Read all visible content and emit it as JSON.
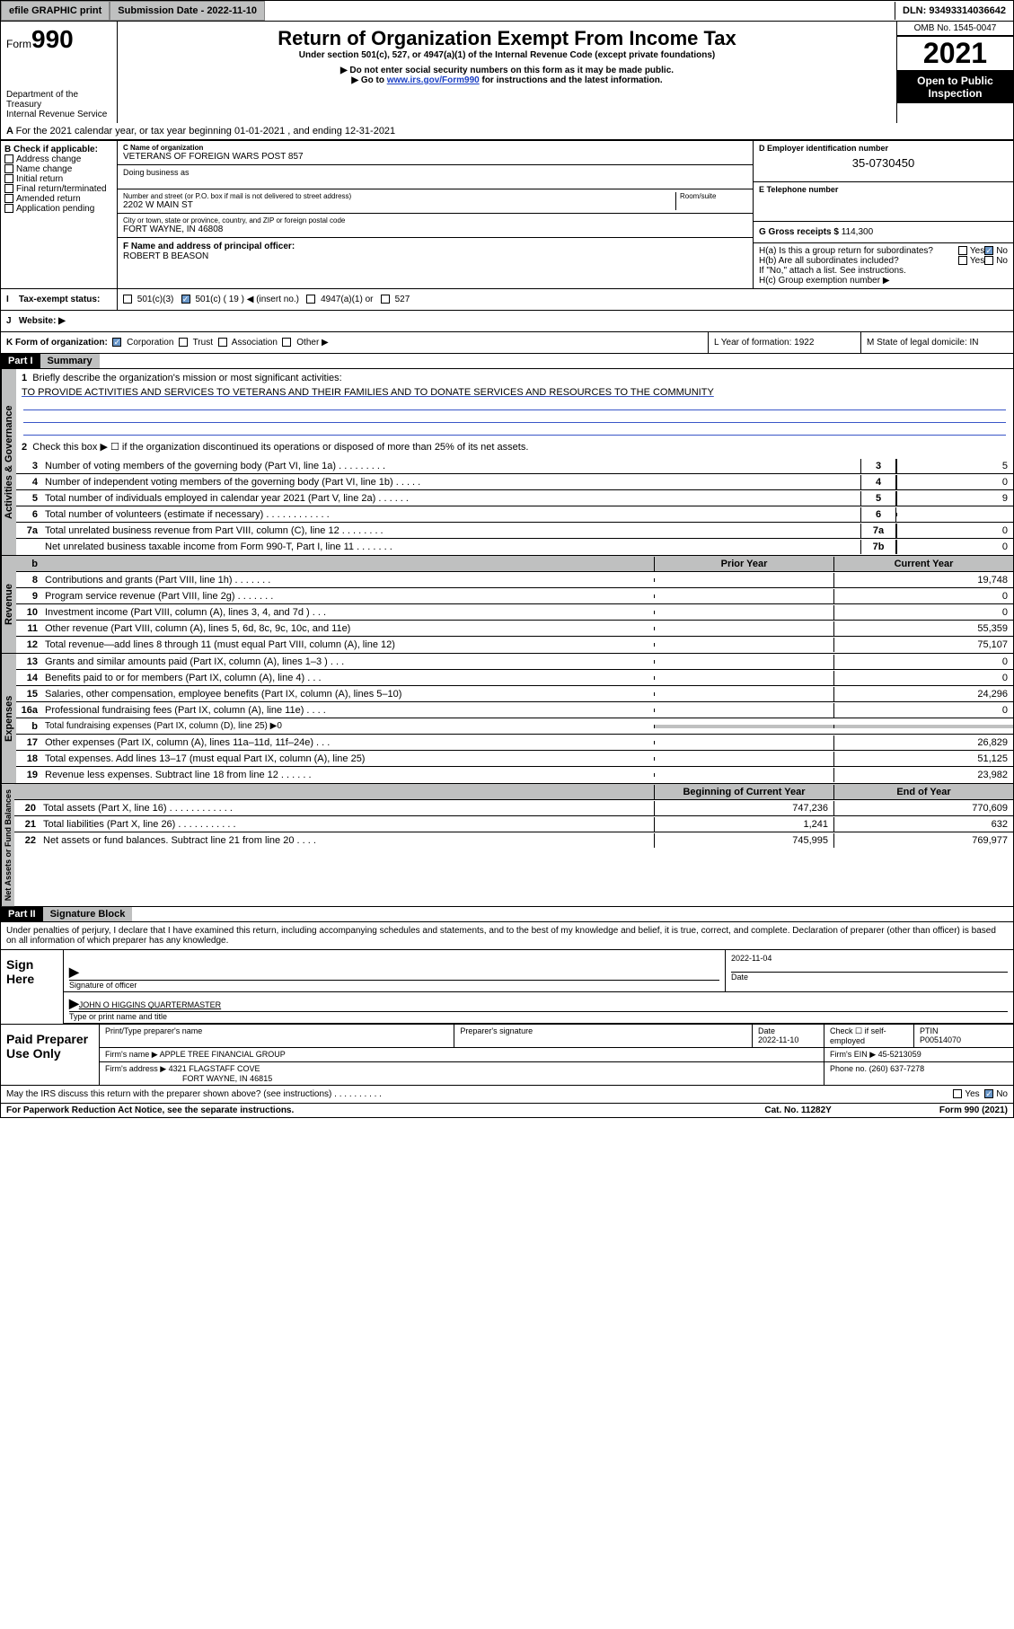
{
  "topbar": {
    "efile": "efile GRAPHIC print",
    "sub_label": "Submission Date - 2022-11-10",
    "dln": "DLN: 93493314036642"
  },
  "header": {
    "form_prefix": "Form",
    "form_no": "990",
    "dept": "Department of the Treasury",
    "irs": "Internal Revenue Service",
    "title": "Return of Organization Exempt From Income Tax",
    "sub1": "Under section 501(c), 527, or 4947(a)(1) of the Internal Revenue Code (except private foundations)",
    "sub2": "▶ Do not enter social security numbers on this form as it may be made public.",
    "sub3_pre": "▶ Go to ",
    "sub3_link": "www.irs.gov/Form990",
    "sub3_post": " for instructions and the latest information.",
    "omb": "OMB No. 1545-0047",
    "year": "2021",
    "open": "Open to Public Inspection"
  },
  "lineA": "For the 2021 calendar year, or tax year beginning 01-01-2021    , and ending 12-31-2021",
  "boxB": {
    "label": "B Check if applicable:",
    "items": [
      "Address change",
      "Name change",
      "Initial return",
      "Final return/terminated",
      "Amended return",
      "Application pending"
    ]
  },
  "boxC": {
    "label": "C Name of organization",
    "name": "VETERANS OF FOREIGN WARS POST 857",
    "dba_label": "Doing business as",
    "addr_label": "Number and street (or P.O. box if mail is not delivered to street address)",
    "room_label": "Room/suite",
    "addr": "2202 W MAIN ST",
    "city_label": "City or town, state or province, country, and ZIP or foreign postal code",
    "city": "FORT WAYNE, IN  46808"
  },
  "boxD": {
    "label": "D Employer identification number",
    "val": "35-0730450"
  },
  "boxE": {
    "label": "E Telephone number"
  },
  "boxF": {
    "label": "F  Name and address of principal officer:",
    "name": "ROBERT B BEASON"
  },
  "boxG": {
    "label": "G Gross receipts $",
    "val": "114,300"
  },
  "boxH": {
    "a": "H(a)  Is this a group return for subordinates?",
    "b": "H(b)  Are all subordinates included?",
    "b_note": "If \"No,\" attach a list. See instructions.",
    "c": "H(c)  Group exemption number ▶",
    "yes": "Yes",
    "no": "No"
  },
  "boxI": {
    "label": "Tax-exempt status:",
    "c3": "501(c)(3)",
    "c": "501(c) ( 19 ) ◀ (insert no.)",
    "a1": "4947(a)(1) or",
    "s527": "527"
  },
  "boxJ": {
    "label": "Website: ▶"
  },
  "boxK": {
    "label": "K Form of organization:",
    "corp": "Corporation",
    "trust": "Trust",
    "assoc": "Association",
    "other": "Other ▶"
  },
  "boxL": {
    "label": "L Year of formation: 1922"
  },
  "boxM": {
    "label": "M State of legal domicile: IN"
  },
  "partI": {
    "hdr": "Part I",
    "title": "Summary"
  },
  "summary": {
    "l1_label": "Briefly describe the organization's mission or most significant activities:",
    "l1_text": "TO PROVIDE ACTIVITIES AND SERVICES TO VETERANS AND THEIR FAMILIES AND TO DONATE SERVICES AND RESOURCES TO THE COMMUNITY",
    "l2": "Check this box ▶ ☐  if the organization discontinued its operations or disposed of more than 25% of its net assets.",
    "rows_gov": [
      {
        "n": "3",
        "d": "Number of voting members of the governing body (Part VI, line 1a)  .    .    .    .    .    .    .    .    .",
        "b": "3",
        "v": "5"
      },
      {
        "n": "4",
        "d": "Number of independent voting members of the governing body (Part VI, line 1b)  .    .    .    .    .",
        "b": "4",
        "v": "0"
      },
      {
        "n": "5",
        "d": "Total number of individuals employed in calendar year 2021 (Part V, line 2a)  .    .    .    .    .    .",
        "b": "5",
        "v": "9"
      },
      {
        "n": "6",
        "d": "Total number of volunteers (estimate if necessary)   .    .    .    .    .    .    .    .    .    .    .    .",
        "b": "6",
        "v": ""
      },
      {
        "n": "7a",
        "d": "Total unrelated business revenue from Part VIII, column (C), line 12   .    .    .    .    .    .    .    .",
        "b": "7a",
        "v": "0"
      },
      {
        "n": "",
        "d": "Net unrelated business taxable income from Form 990-T, Part I, line 11  .    .    .    .    .    .    .",
        "b": "7b",
        "v": "0"
      }
    ],
    "hdr_prior": "Prior Year",
    "hdr_cur": "Current Year",
    "rows_rev": [
      {
        "n": "8",
        "d": "Contributions and grants (Part VIII, line 1h)   .    .    .    .    .    .    .",
        "p": "",
        "c": "19,748"
      },
      {
        "n": "9",
        "d": "Program service revenue (Part VIII, line 2g)  .    .    .    .    .    .    .",
        "p": "",
        "c": "0"
      },
      {
        "n": "10",
        "d": "Investment income (Part VIII, column (A), lines 3, 4, and 7d )   .    .    .",
        "p": "",
        "c": "0"
      },
      {
        "n": "11",
        "d": "Other revenue (Part VIII, column (A), lines 5, 6d, 8c, 9c, 10c, and 11e)",
        "p": "",
        "c": "55,359"
      },
      {
        "n": "12",
        "d": "Total revenue—add lines 8 through 11 (must equal Part VIII, column (A), line 12)",
        "p": "",
        "c": "75,107"
      }
    ],
    "rows_exp": [
      {
        "n": "13",
        "d": "Grants and similar amounts paid (Part IX, column (A), lines 1–3 )  .    .    .",
        "p": "",
        "c": "0"
      },
      {
        "n": "14",
        "d": "Benefits paid to or for members (Part IX, column (A), line 4)  .    .    .",
        "p": "",
        "c": "0"
      },
      {
        "n": "15",
        "d": "Salaries, other compensation, employee benefits (Part IX, column (A), lines 5–10)",
        "p": "",
        "c": "24,296"
      },
      {
        "n": "16a",
        "d": "Professional fundraising fees (Part IX, column (A), line 11e)   .    .    .    .",
        "p": "",
        "c": "0"
      },
      {
        "n": "b",
        "d": "Total fundraising expenses (Part IX, column (D), line 25) ▶0",
        "grey": true
      },
      {
        "n": "17",
        "d": "Other expenses (Part IX, column (A), lines 11a–11d, 11f–24e)  .    .    .",
        "p": "",
        "c": "26,829"
      },
      {
        "n": "18",
        "d": "Total expenses. Add lines 13–17 (must equal Part IX, column (A), line 25)",
        "p": "",
        "c": "51,125"
      },
      {
        "n": "19",
        "d": "Revenue less expenses. Subtract line 18 from line 12  .    .    .    .    .    .",
        "p": "",
        "c": "23,982"
      }
    ],
    "hdr_boy": "Beginning of Current Year",
    "hdr_eoy": "End of Year",
    "rows_net": [
      {
        "n": "20",
        "d": "Total assets (Part X, line 16)  .    .    .    .    .    .    .    .    .    .    .    .",
        "p": "747,236",
        "c": "770,609"
      },
      {
        "n": "21",
        "d": "Total liabilities (Part X, line 26)  .    .    .    .    .    .    .    .    .    .    .",
        "p": "1,241",
        "c": "632"
      },
      {
        "n": "22",
        "d": "Net assets or fund balances. Subtract line 21 from line 20  .    .    .    .",
        "p": "745,995",
        "c": "769,977"
      }
    ],
    "tab_gov": "Activities & Governance",
    "tab_rev": "Revenue",
    "tab_exp": "Expenses",
    "tab_net": "Net Assets or Fund Balances"
  },
  "partII": {
    "hdr": "Part II",
    "title": "Signature Block"
  },
  "sig": {
    "penalty": "Under penalties of perjury, I declare that I have examined this return, including accompanying schedules and statements, and to the best of my knowledge and belief, it is true, correct, and complete. Declaration of preparer (other than officer) is based on all information of which preparer has any knowledge.",
    "sign_here": "Sign Here",
    "date": "2022-11-04",
    "sig_officer": "Signature of officer",
    "date_lbl": "Date",
    "officer_name": "JOHN O HIGGINS  QUARTERMASTER",
    "type_name": "Type or print name and title",
    "paid": "Paid Preparer Use Only",
    "pt_name": "Print/Type preparer's name",
    "pp_sig": "Preparer's signature",
    "pp_date": "Date",
    "pp_date_v": "2022-11-10",
    "check_self": "Check ☐ if self-employed",
    "ptin": "PTIN",
    "ptin_v": "P00514070",
    "firm_name": "Firm's name     ▶",
    "firm_name_v": "APPLE TREE FINANCIAL GROUP",
    "firm_ein": "Firm's EIN ▶",
    "firm_ein_v": "45-5213059",
    "firm_addr": "Firm's address ▶",
    "firm_addr_v": "4321 FLAGSTAFF COVE",
    "firm_addr_v2": "FORT WAYNE, IN  46815",
    "phone": "Phone no.",
    "phone_v": "(260) 637-7278",
    "may_irs": "May the IRS discuss this return with the preparer shown above? (see instructions)   .    .    .    .    .    .    .    .    .    .",
    "yes": "Yes",
    "no": "No"
  },
  "footer": {
    "pra": "For Paperwork Reduction Act Notice, see the separate instructions.",
    "cat": "Cat. No. 11282Y",
    "form": "Form 990 (2021)"
  }
}
